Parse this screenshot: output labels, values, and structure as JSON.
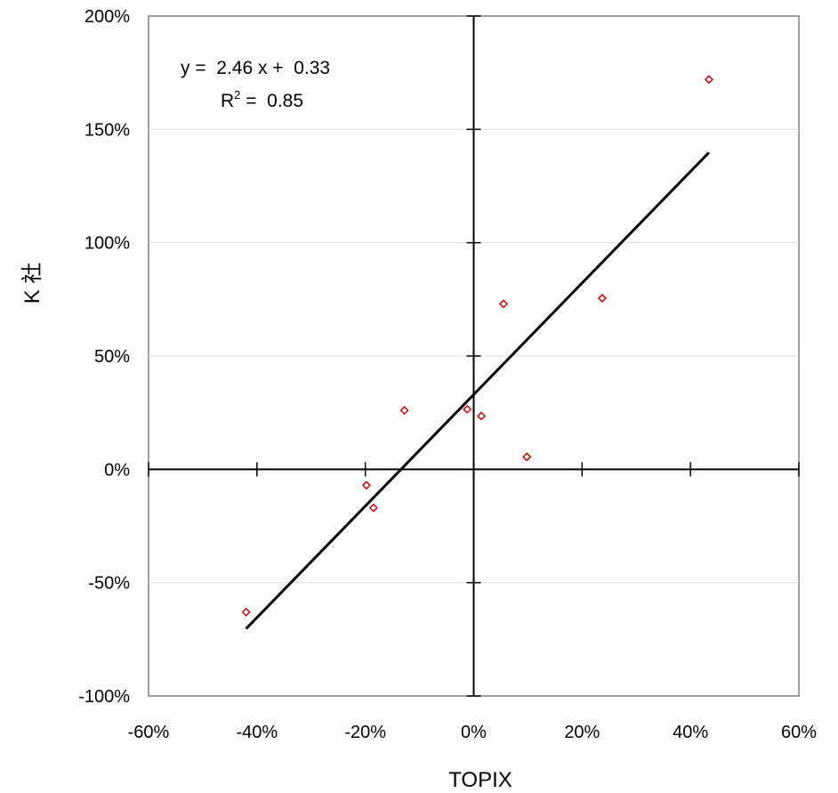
{
  "chart_data": {
    "type": "scatter",
    "xlabel": "TOPIX",
    "ylabel": "K 社",
    "xlim": [
      -0.6,
      0.6
    ],
    "ylim": [
      -1.0,
      2.0
    ],
    "x_ticks": [
      -0.6,
      -0.4,
      -0.2,
      0.0,
      0.2,
      0.4,
      0.6
    ],
    "x_tick_labels": [
      "-60%",
      "-40%",
      "-20%",
      "0%",
      "20%",
      "40%",
      "60%"
    ],
    "y_ticks": [
      -1.0,
      -0.5,
      0.0,
      0.5,
      1.0,
      1.5,
      2.0
    ],
    "y_tick_labels": [
      "-100%",
      "-50%",
      "0%",
      "50%",
      "100%",
      "150%",
      "200%"
    ],
    "grid": "horizontal",
    "marker": "diamond",
    "marker_color": "#e00000",
    "points": [
      {
        "x": 0.434,
        "y": 1.72
      },
      {
        "x": 0.237,
        "y": 0.755
      },
      {
        "x": 0.055,
        "y": 0.73
      },
      {
        "x": -0.128,
        "y": 0.26
      },
      {
        "x": -0.012,
        "y": 0.265
      },
      {
        "x": 0.014,
        "y": 0.235
      },
      {
        "x": 0.098,
        "y": 0.055
      },
      {
        "x": -0.198,
        "y": -0.07
      },
      {
        "x": -0.185,
        "y": -0.17
      },
      {
        "x": -0.42,
        "y": -0.63
      }
    ],
    "trendline": {
      "slope": 2.46,
      "intercept": 0.33,
      "x_range": [
        -0.42,
        0.434
      ],
      "color": "#000000"
    },
    "equation": {
      "line1": "y =  2.46 x +  0.33",
      "r_prefix": "R",
      "r_sup": "2",
      "r_value": " =  0.85"
    }
  }
}
